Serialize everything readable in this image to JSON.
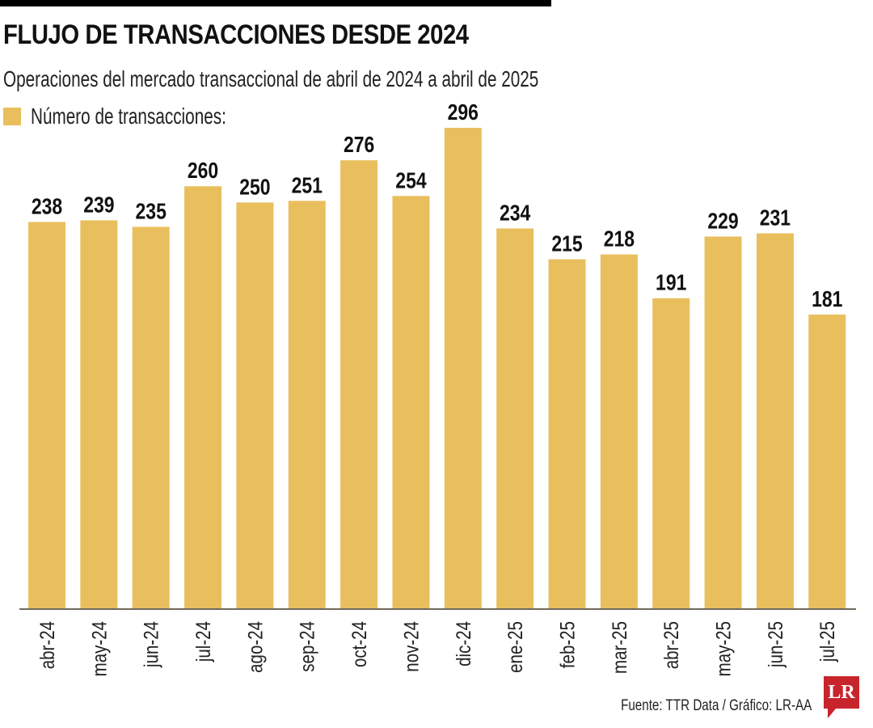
{
  "header": {
    "title": "FLUJO DE TRANSACCIONES DESDE 2024",
    "subtitle": "Operaciones del mercado transaccional de abril de 2024 a abril de 2025"
  },
  "legend": {
    "label": "Número de transacciones:",
    "color": "#E9BF5E"
  },
  "footer": {
    "source": "Fuente: TTR Data / Gráfico: LR-AA",
    "logo": "LR",
    "logo_color": "#C8242C"
  },
  "chart_data": {
    "type": "bar",
    "title": "FLUJO DE TRANSACCIONES DESDE 2024",
    "subtitle": "Operaciones del mercado transaccional de abril de 2024 a abril de 2025",
    "xlabel": "",
    "ylabel": "",
    "ylim": [
      0,
      296
    ],
    "grid": false,
    "legend_position": "top-left",
    "bar_color": "#E9BF5E",
    "axis_color": "#6E6A5E",
    "categories": [
      "abr-24",
      "may-24",
      "jun-24",
      "jul-24",
      "ago-24",
      "sep-24",
      "oct-24",
      "nov-24",
      "dic-24",
      "ene-25",
      "feb-25",
      "mar-25",
      "abr-25",
      "may-25",
      "jun-25",
      "jul-25"
    ],
    "series": [
      {
        "name": "Número de transacciones",
        "values": [
          238,
          239,
          235,
          260,
          250,
          251,
          276,
          254,
          296,
          234,
          215,
          218,
          191,
          229,
          231,
          181
        ]
      }
    ]
  }
}
